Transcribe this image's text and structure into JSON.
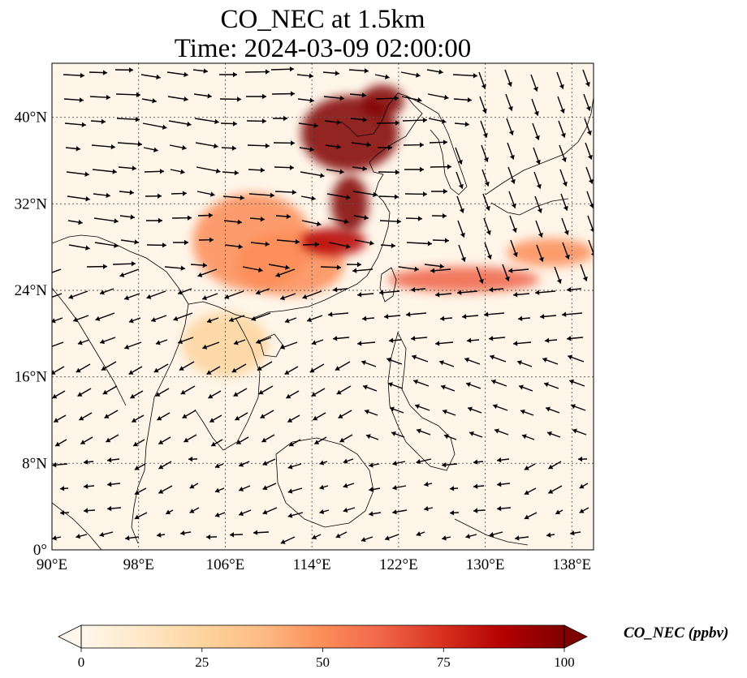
{
  "title_line1": "CO_NEC at 1.5km",
  "title_line2": "Time: 2024-03-09 02:00:00",
  "map": {
    "lon_range": [
      90,
      140
    ],
    "lat_range": [
      0,
      45
    ],
    "lon_ticks": [
      {
        "value": 90,
        "label": "90°E"
      },
      {
        "value": 98,
        "label": "98°E"
      },
      {
        "value": 106,
        "label": "106°E"
      },
      {
        "value": 114,
        "label": "114°E"
      },
      {
        "value": 122,
        "label": "122°E"
      },
      {
        "value": 130,
        "label": "130°E"
      },
      {
        "value": 138,
        "label": "138°E"
      }
    ],
    "lat_ticks": [
      {
        "value": 0,
        "label": "0°"
      },
      {
        "value": 8,
        "label": "8°N"
      },
      {
        "value": 16,
        "label": "16°N"
      },
      {
        "value": 24,
        "label": "24°N"
      },
      {
        "value": 32,
        "label": "32°N"
      },
      {
        "value": 40,
        "label": "40°N"
      }
    ],
    "gridlines": true
  },
  "colorbar": {
    "label": "CO_NEC (ppbv)",
    "min": 0,
    "max": 100,
    "ticks": [
      {
        "value": 0,
        "label": "0"
      },
      {
        "value": 25,
        "label": "25"
      },
      {
        "value": 50,
        "label": "50"
      },
      {
        "value": 75,
        "label": "75"
      },
      {
        "value": 100,
        "label": "100"
      }
    ],
    "extend": "both",
    "colors": [
      "#fff7ec",
      "#fee8c8",
      "#fdd49e",
      "#fdbb84",
      "#fc8d59",
      "#ef6548",
      "#d7301f",
      "#b30000",
      "#7f0000"
    ]
  },
  "plumes": [
    {
      "name": "north-china-plume",
      "lon": 117.5,
      "lat": 38.5,
      "rx_deg": 4.5,
      "ry_deg": 3.5,
      "value": 95
    },
    {
      "name": "bohai-plume",
      "lon": 120.5,
      "lat": 41.5,
      "rx_deg": 2.0,
      "ry_deg": 1.5,
      "value": 100
    },
    {
      "name": "shandong-plume",
      "lon": 117.5,
      "lat": 32.0,
      "rx_deg": 1.7,
      "ry_deg": 2.6,
      "value": 100
    },
    {
      "name": "yangtze-plume",
      "lon": 116.0,
      "lat": 28.5,
      "rx_deg": 3.0,
      "ry_deg": 1.3,
      "value": 92
    },
    {
      "name": "southwest-china-plume",
      "lon": 108.5,
      "lat": 28.5,
      "rx_deg": 5.5,
      "ry_deg": 4.5,
      "value": 55
    },
    {
      "name": "east-china-plume",
      "lon": 112.0,
      "lat": 26.5,
      "rx_deg": 5.0,
      "ry_deg": 3.0,
      "value": 50
    },
    {
      "name": "pacific-outflow",
      "lon": 128.0,
      "lat": 25.0,
      "rx_deg": 7.0,
      "ry_deg": 1.2,
      "value": 68
    },
    {
      "name": "pacific-outflow-east",
      "lon": 136.0,
      "lat": 27.5,
      "rx_deg": 4.0,
      "ry_deg": 1.3,
      "value": 45
    },
    {
      "name": "indochina-haze",
      "lon": 106.0,
      "lat": 19.0,
      "rx_deg": 4.0,
      "ry_deg": 3.0,
      "value": 25
    }
  ]
}
